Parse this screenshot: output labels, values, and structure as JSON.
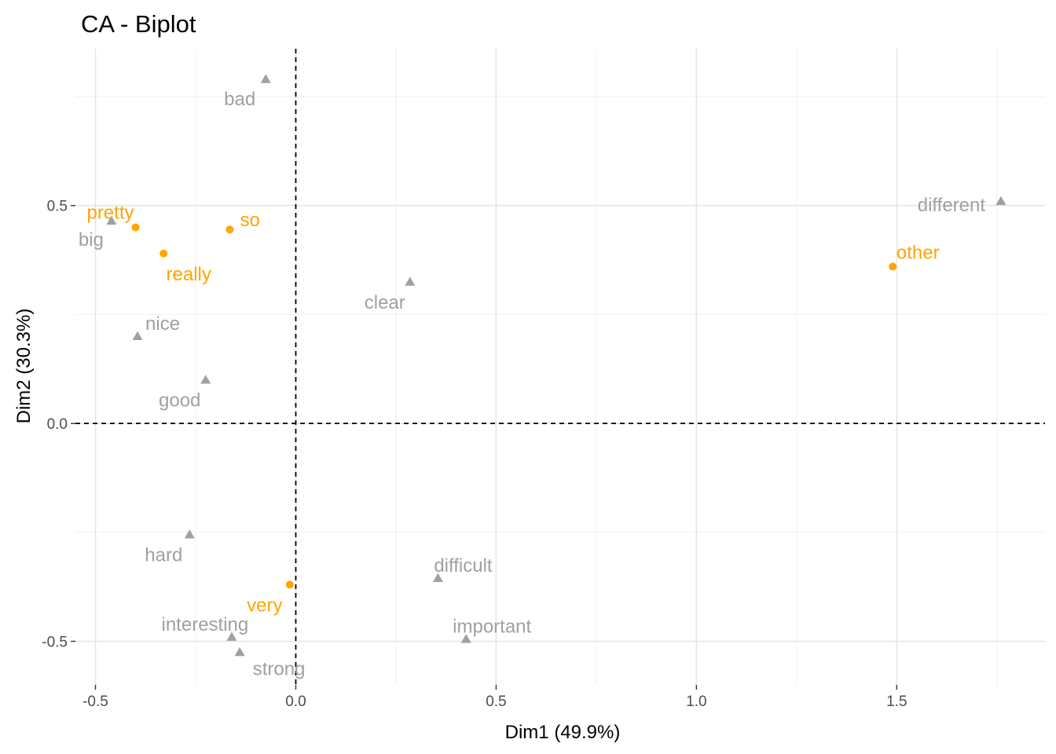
{
  "chart_data": {
    "type": "scatter",
    "title": "CA - Biplot",
    "xlabel": "Dim1 (49.9%)",
    "ylabel": "Dim2 (30.3%)",
    "xlim": [
      -0.55,
      1.87
    ],
    "ylim": [
      -0.6,
      0.86
    ],
    "x_ticks": [
      -0.5,
      0.0,
      0.5,
      1.0,
      1.5
    ],
    "x_tick_labels": [
      "-0.5",
      "0.0",
      "0.5",
      "1.0",
      "1.5"
    ],
    "y_ticks": [
      -0.5,
      0.0,
      0.5
    ],
    "y_tick_labels": [
      "-0.5",
      "0.0",
      "0.5"
    ],
    "grid": true,
    "reference_lines": {
      "x": 0,
      "y": 0,
      "style": "dashed"
    },
    "colors": {
      "rows": "#FFA500",
      "cols": "#A0A0A0"
    },
    "series": [
      {
        "marker": "circle",
        "color": "#FFA500",
        "points": [
          {
            "label": "pretty",
            "x": -0.4,
            "y": 0.45
          },
          {
            "label": "so",
            "x": -0.165,
            "y": 0.445
          },
          {
            "label": "really",
            "x": -0.33,
            "y": 0.39
          },
          {
            "label": "other",
            "x": 1.49,
            "y": 0.36
          },
          {
            "label": "very",
            "x": -0.015,
            "y": -0.37
          }
        ]
      },
      {
        "marker": "triangle",
        "color": "#A0A0A0",
        "points": [
          {
            "label": "bad",
            "x": -0.075,
            "y": 0.79
          },
          {
            "label": "different",
            "x": 1.76,
            "y": 0.51
          },
          {
            "label": "big",
            "x": -0.46,
            "y": 0.465
          },
          {
            "label": "clear",
            "x": 0.285,
            "y": 0.325
          },
          {
            "label": "nice",
            "x": -0.395,
            "y": 0.2
          },
          {
            "label": "good",
            "x": -0.225,
            "y": 0.1
          },
          {
            "label": "hard",
            "x": -0.265,
            "y": -0.255
          },
          {
            "label": "difficult",
            "x": 0.355,
            "y": -0.355
          },
          {
            "label": "interesting",
            "x": -0.16,
            "y": -0.49
          },
          {
            "label": "important",
            "x": 0.425,
            "y": -0.495
          },
          {
            "label": "strong",
            "x": -0.14,
            "y": -0.525
          }
        ]
      }
    ]
  }
}
